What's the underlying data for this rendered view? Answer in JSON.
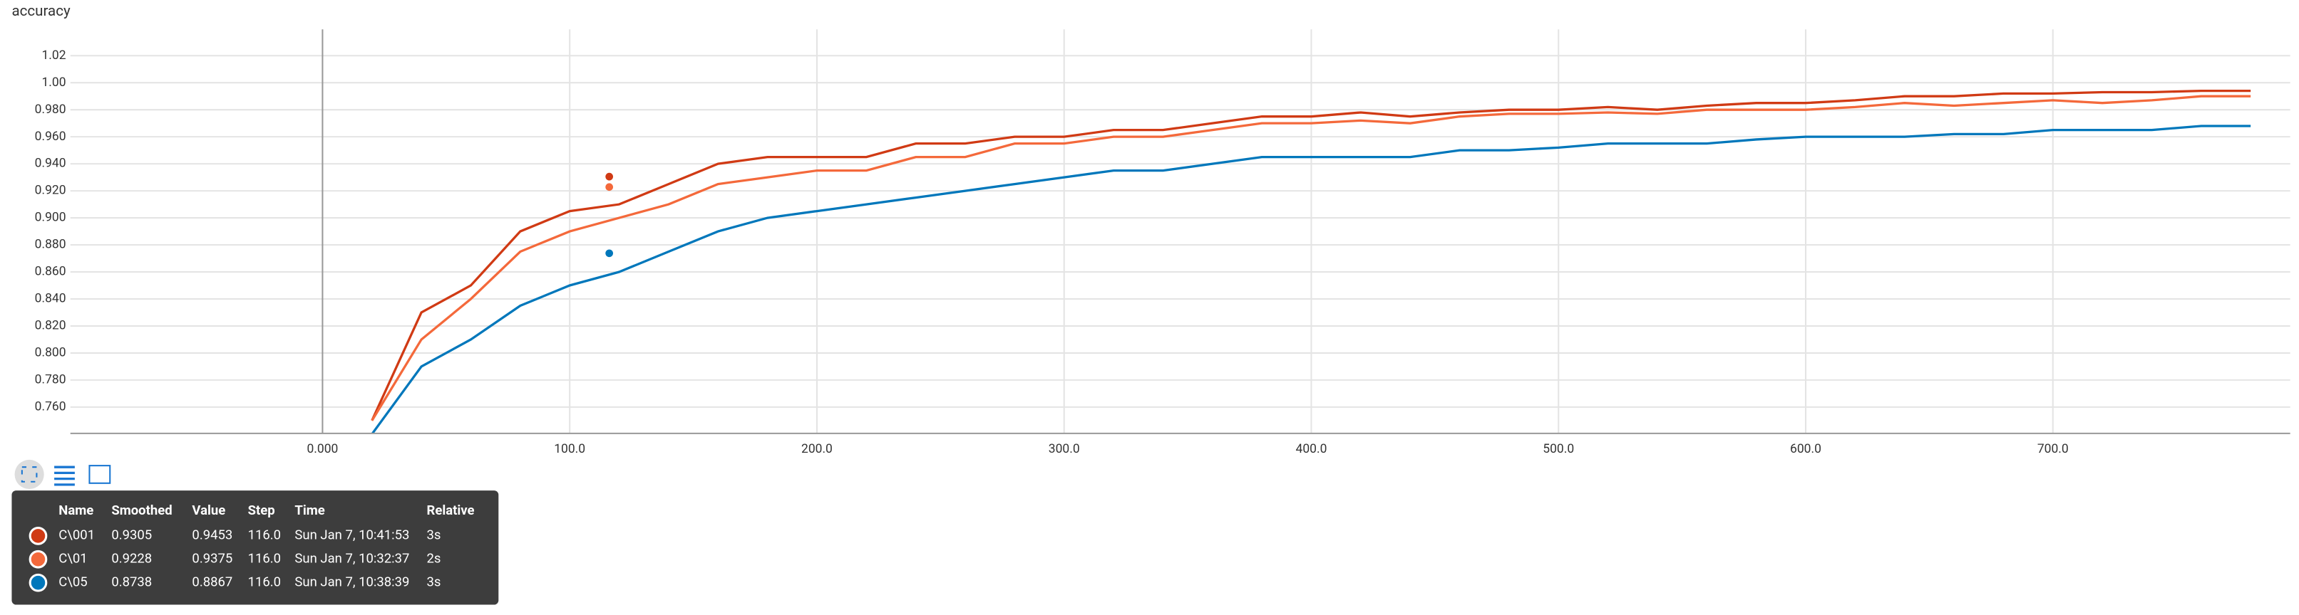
{
  "chart_data": {
    "type": "line",
    "title": "accuracy",
    "x": [
      20,
      40,
      60,
      80,
      100,
      120,
      140,
      160,
      180,
      200,
      220,
      240,
      260,
      280,
      300,
      320,
      340,
      360,
      380,
      400,
      420,
      440,
      460,
      480,
      500,
      520,
      540,
      560,
      580,
      600,
      620,
      640,
      660,
      680,
      700,
      720,
      740,
      760,
      780
    ],
    "series": [
      {
        "name": "C\\001",
        "color": "#d03a14",
        "values": [
          0.75,
          0.83,
          0.85,
          0.89,
          0.905,
          0.91,
          0.925,
          0.94,
          0.945,
          0.945,
          0.945,
          0.955,
          0.955,
          0.96,
          0.96,
          0.965,
          0.965,
          0.97,
          0.975,
          0.975,
          0.978,
          0.975,
          0.978,
          0.98,
          0.98,
          0.982,
          0.98,
          0.983,
          0.985,
          0.985,
          0.987,
          0.99,
          0.99,
          0.992,
          0.992,
          0.993,
          0.993,
          0.994,
          0.994
        ]
      },
      {
        "name": "C\\01",
        "color": "#f4693b",
        "values": [
          0.75,
          0.81,
          0.84,
          0.875,
          0.89,
          0.9,
          0.91,
          0.925,
          0.93,
          0.935,
          0.935,
          0.945,
          0.945,
          0.955,
          0.955,
          0.96,
          0.96,
          0.965,
          0.97,
          0.97,
          0.972,
          0.97,
          0.975,
          0.977,
          0.977,
          0.978,
          0.977,
          0.98,
          0.98,
          0.98,
          0.982,
          0.985,
          0.983,
          0.985,
          0.987,
          0.985,
          0.987,
          0.99,
          0.99
        ]
      },
      {
        "name": "C\\05",
        "color": "#0077bb",
        "values": [
          0.74,
          0.79,
          0.81,
          0.835,
          0.85,
          0.86,
          0.875,
          0.89,
          0.9,
          0.905,
          0.91,
          0.915,
          0.92,
          0.925,
          0.93,
          0.935,
          0.935,
          0.94,
          0.945,
          0.945,
          0.945,
          0.945,
          0.95,
          0.95,
          0.952,
          0.955,
          0.955,
          0.955,
          0.958,
          0.96,
          0.96,
          0.96,
          0.962,
          0.962,
          0.965,
          0.965,
          0.965,
          0.968,
          0.968
        ]
      }
    ],
    "xlim": [
      -102,
      796
    ],
    "ylim": [
      0.7405,
      1.0395
    ],
    "xticks": [
      {
        "value": 0,
        "label": "0.000"
      },
      {
        "value": 100,
        "label": "100.0"
      },
      {
        "value": 200,
        "label": "200.0"
      },
      {
        "value": 300,
        "label": "300.0"
      },
      {
        "value": 400,
        "label": "400.0"
      },
      {
        "value": 500,
        "label": "500.0"
      },
      {
        "value": 600,
        "label": "600.0"
      },
      {
        "value": 700,
        "label": "700.0"
      }
    ],
    "yticks": [
      {
        "value": 0.76,
        "label": "0.760"
      },
      {
        "value": 0.78,
        "label": "0.780"
      },
      {
        "value": 0.8,
        "label": "0.800"
      },
      {
        "value": 0.82,
        "label": "0.820"
      },
      {
        "value": 0.84,
        "label": "0.840"
      },
      {
        "value": 0.86,
        "label": "0.860"
      },
      {
        "value": 0.88,
        "label": "0.880"
      },
      {
        "value": 0.9,
        "label": "0.900"
      },
      {
        "value": 0.92,
        "label": "0.920"
      },
      {
        "value": 0.94,
        "label": "0.940"
      },
      {
        "value": 0.96,
        "label": "0.960"
      },
      {
        "value": 0.98,
        "label": "0.980"
      },
      {
        "value": 1,
        "label": "1.00"
      },
      {
        "value": 1.02,
        "label": "1.02"
      }
    ],
    "grid": true
  },
  "tooltip": {
    "headers": [
      "Name",
      "Smoothed",
      "Value",
      "Step",
      "Time",
      "Relative"
    ],
    "rows": [
      {
        "name": "C\\001",
        "smoothed": 0.9305,
        "value": 0.9453,
        "step": {
          "value": 116,
          "label": "116.0"
        },
        "time": "Sun Jan 7, 10:41:53",
        "relative": "3s"
      },
      {
        "name": "C\\01",
        "smoothed": 0.9228,
        "value": 0.9375,
        "step": {
          "value": 116,
          "label": "116.0"
        },
        "time": "Sun Jan 7, 10:32:37",
        "relative": "2s"
      },
      {
        "name": "C\\05",
        "smoothed": 0.8738,
        "value": 0.8867,
        "step": {
          "value": 116,
          "label": "116.0"
        },
        "time": "Sun Jan 7, 10:38:39",
        "relative": "3s"
      }
    ]
  }
}
